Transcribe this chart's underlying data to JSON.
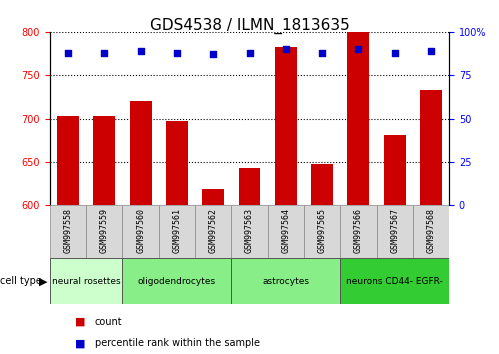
{
  "title": "GDS4538 / ILMN_1813635",
  "samples": [
    "GSM997558",
    "GSM997559",
    "GSM997560",
    "GSM997561",
    "GSM997562",
    "GSM997563",
    "GSM997564",
    "GSM997565",
    "GSM997566",
    "GSM997567",
    "GSM997568"
  ],
  "counts": [
    703,
    703,
    720,
    697,
    619,
    643,
    782,
    648,
    800,
    681,
    733
  ],
  "percentiles": [
    88,
    88,
    89,
    88,
    87,
    88,
    90,
    88,
    90,
    88,
    89
  ],
  "ylim_left": [
    600,
    800
  ],
  "ylim_right": [
    0,
    100
  ],
  "yticks_left": [
    600,
    650,
    700,
    750,
    800
  ],
  "yticks_right": [
    0,
    25,
    50,
    75,
    100
  ],
  "cell_types": [
    {
      "label": "neural rosettes",
      "start": 0,
      "end": 2,
      "color": "#ccffcc"
    },
    {
      "label": "oligodendrocytes",
      "start": 2,
      "end": 5,
      "color": "#88ee88"
    },
    {
      "label": "astrocytes",
      "start": 5,
      "end": 8,
      "color": "#88ee88"
    },
    {
      "label": "neurons CD44- EGFR-",
      "start": 8,
      "end": 11,
      "color": "#33cc33"
    }
  ],
  "bar_color": "#cc0000",
  "dot_color": "#0000cc",
  "plot_bg": "#ffffff",
  "sample_box_color": "#d8d8d8",
  "legend_count_color": "#cc0000",
  "legend_pct_color": "#0000cc",
  "title_fontsize": 11,
  "tick_fontsize": 7,
  "sample_fontsize": 6,
  "ct_fontsize": 6.5,
  "legend_fontsize": 7
}
